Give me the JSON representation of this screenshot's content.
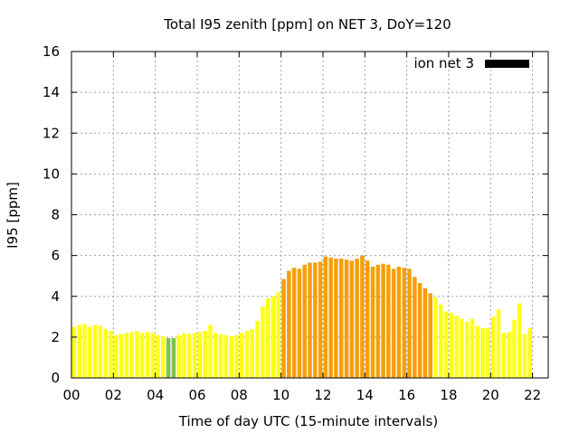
{
  "chart_data": {
    "type": "bar",
    "title": "Total I95 zenith [ppm] on NET 3, DoY=120",
    "xlabel": "Time of day UTC (15-minute intervals)",
    "ylabel": "I95 [ppm]",
    "legend": {
      "label": "ion net 3",
      "color": "#000000",
      "placement": "top-right"
    },
    "grid": true,
    "xlim": [
      0,
      22.75
    ],
    "ylim": [
      0,
      16
    ],
    "x_tick_labels": [
      "00",
      "02",
      "04",
      "06",
      "08",
      "10",
      "12",
      "14",
      "16",
      "18",
      "20",
      "22"
    ],
    "x_tick_values": [
      0,
      2,
      4,
      6,
      8,
      10,
      12,
      14,
      16,
      18,
      20,
      22
    ],
    "y_tick_values": [
      0,
      2,
      4,
      6,
      8,
      10,
      12,
      14,
      16
    ],
    "interval_hours": 0.25,
    "values": [
      2.5,
      2.6,
      2.65,
      2.5,
      2.6,
      2.55,
      2.4,
      2.3,
      2.1,
      2.15,
      2.2,
      2.25,
      2.3,
      2.2,
      2.25,
      2.2,
      2.1,
      2.05,
      1.95,
      1.95,
      2.1,
      2.2,
      2.15,
      2.2,
      2.25,
      2.3,
      2.6,
      2.2,
      2.15,
      2.1,
      2.05,
      2.1,
      2.2,
      2.3,
      2.4,
      2.8,
      3.5,
      3.9,
      4.0,
      4.2,
      4.85,
      5.25,
      5.4,
      5.35,
      5.55,
      5.65,
      5.65,
      5.7,
      5.95,
      5.9,
      5.85,
      5.85,
      5.8,
      5.75,
      5.85,
      6.0,
      5.75,
      5.45,
      5.55,
      5.6,
      5.55,
      5.35,
      5.45,
      5.4,
      5.35,
      4.95,
      4.65,
      4.4,
      4.15,
      3.95,
      3.6,
      3.25,
      3.2,
      3.05,
      2.9,
      2.75,
      2.9,
      2.55,
      2.45,
      2.45,
      3.0,
      3.35,
      2.2,
      2.25,
      2.85,
      3.65,
      2.15,
      2.45
    ],
    "colors": {
      "green": "#7cc24a",
      "yellow": "#ffff1a",
      "orange": "#f5a00a"
    },
    "color_sequence": [
      "yellow",
      "yellow",
      "yellow",
      "yellow",
      "yellow",
      "yellow",
      "yellow",
      "yellow",
      "yellow",
      "yellow",
      "yellow",
      "yellow",
      "yellow",
      "yellow",
      "yellow",
      "yellow",
      "yellow",
      "yellow",
      "green",
      "green",
      "yellow",
      "yellow",
      "yellow",
      "yellow",
      "yellow",
      "yellow",
      "yellow",
      "yellow",
      "yellow",
      "yellow",
      "yellow",
      "yellow",
      "yellow",
      "yellow",
      "yellow",
      "yellow",
      "yellow",
      "yellow",
      "yellow",
      "yellow",
      "orange",
      "orange",
      "orange",
      "orange",
      "orange",
      "orange",
      "orange",
      "orange",
      "orange",
      "orange",
      "orange",
      "orange",
      "orange",
      "orange",
      "orange",
      "orange",
      "orange",
      "orange",
      "orange",
      "orange",
      "orange",
      "orange",
      "orange",
      "orange",
      "orange",
      "orange",
      "orange",
      "orange",
      "orange",
      "yellow",
      "yellow",
      "yellow",
      "yellow",
      "yellow",
      "yellow",
      "yellow",
      "yellow",
      "yellow",
      "yellow",
      "yellow",
      "yellow",
      "yellow",
      "yellow",
      "yellow",
      "yellow",
      "yellow",
      "yellow",
      "yellow"
    ]
  }
}
